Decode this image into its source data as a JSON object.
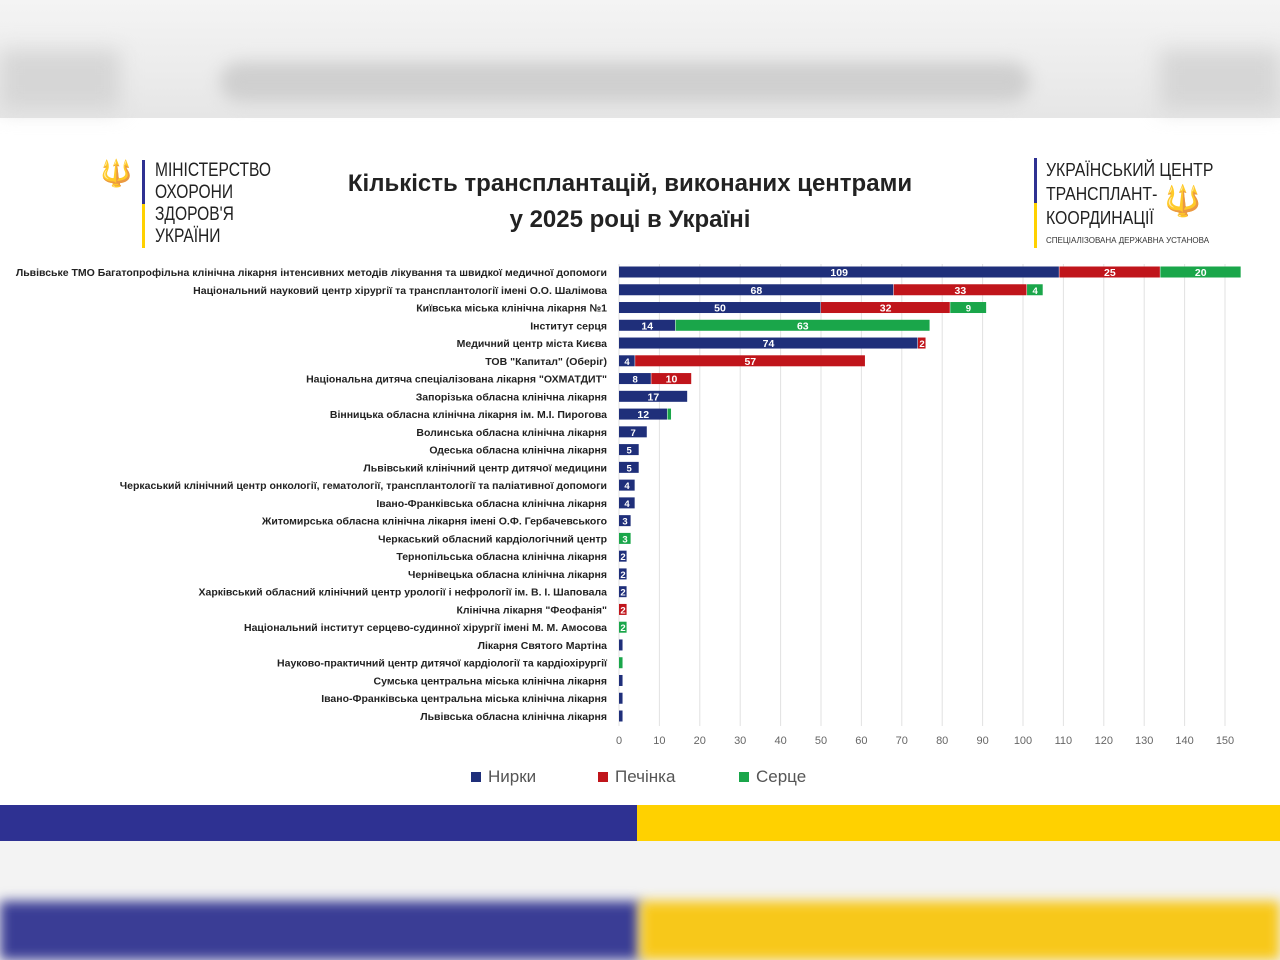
{
  "header": {
    "ministry_logo_lines": [
      "МІНІСТЕРСТВО",
      "ОХОРОНИ",
      "ЗДОРОВ'Я",
      "УКРАЇНИ"
    ],
    "title_line1": "Кількість трансплантацій, виконаних центрами",
    "title_line2": "у 2025 році в Україні",
    "center_logo_lines": [
      "УКРАЇНСЬКИЙ ЦЕНТР",
      "ТРАНСПЛАНТ-",
      "КООРДИНАЦІЇ"
    ],
    "center_logo_sub": "СПЕЦІАЛІЗОВАНА ДЕРЖАВНА УСТАНОВА"
  },
  "colors": {
    "kidney": "#1f2f7a",
    "liver": "#c0151b",
    "heart": "#1aa64a",
    "flag_blue": "#2e3192",
    "flag_yellow": "#ffd100"
  },
  "chart_data": {
    "type": "bar",
    "orientation": "horizontal",
    "stacked": true,
    "title": "Кількість трансплантацій, виконаних центрами у 2025 році в Україні",
    "xlim": [
      0,
      150
    ],
    "xticks": [
      0,
      10,
      20,
      30,
      40,
      50,
      60,
      70,
      80,
      90,
      100,
      110,
      120,
      130,
      140,
      150
    ],
    "grid": true,
    "legend_position": "bottom",
    "categories": [
      "Львівське ТМО Багатопрофільна клінічна лікарня інтенсивних методів лікування та швидкої медичної допомоги",
      "Національний науковий центр хірургії та трансплантології імені О.О. Шалімова",
      "Київська міська клінічна лікарня №1",
      "Інститут серця",
      "Медичний центр міста Києва",
      "ТОВ \"Капитал\" (Оберіг)",
      "Національна дитяча спеціалізована лікарня \"ОХМАТДИТ\"",
      "Запорізька обласна клінічна лікарня",
      "Вінницька обласна клінічна лікарня ім. М.І. Пирогова",
      "Волинська обласна клінічна лікарня",
      "Одеська обласна клінічна лікарня",
      "Львівський клінічний центр дитячої медицини",
      "Черкаський клінічний центр онкології, гематології, трансплантології та паліативної допомоги",
      "Івано-Франківська обласна клінічна лікарня",
      "Житомирська обласна клінічна лікарня імені О.Ф. Гербачевського",
      "Черкаський обласний кардіологічний центр",
      "Тернопільська обласна клінічна лікарня",
      "Чернівецька обласна клінічна лікарня",
      "Харківський обласний клінічний центр урології і нефрології ім. В. І. Шаповала",
      "Клінічна лікарня \"Феофанія\"",
      "Національний інститут серцево-судинної хірургії імені М. М. Амосова",
      "Лікарня Святого Мартіна",
      "Науково-практичний центр дитячої кардіології та кардіохірургії",
      "Сумська центральна міська клінічна лікарня",
      "Івано-Франківська центральна міська клінічна лікарня",
      "Львівська обласна клінічна лікарня"
    ],
    "series": [
      {
        "name": "Нирки",
        "key": "kidney",
        "values": [
          109,
          68,
          50,
          14,
          74,
          4,
          8,
          17,
          12,
          7,
          5,
          5,
          4,
          4,
          3,
          0,
          2,
          2,
          2,
          0,
          0,
          1,
          0,
          1,
          1,
          1
        ]
      },
      {
        "name": "Печінка",
        "key": "liver",
        "values": [
          25,
          33,
          32,
          0,
          2,
          57,
          10,
          0,
          0,
          0,
          0,
          0,
          0,
          0,
          0,
          0,
          0,
          0,
          0,
          2,
          0,
          0,
          0,
          0,
          0,
          0
        ]
      },
      {
        "name": "Серце",
        "key": "heart",
        "values": [
          20,
          4,
          9,
          63,
          0,
          0,
          0,
          0,
          1,
          0,
          0,
          0,
          0,
          0,
          0,
          3,
          0,
          0,
          0,
          0,
          2,
          0,
          1,
          0,
          0,
          0
        ]
      }
    ]
  }
}
